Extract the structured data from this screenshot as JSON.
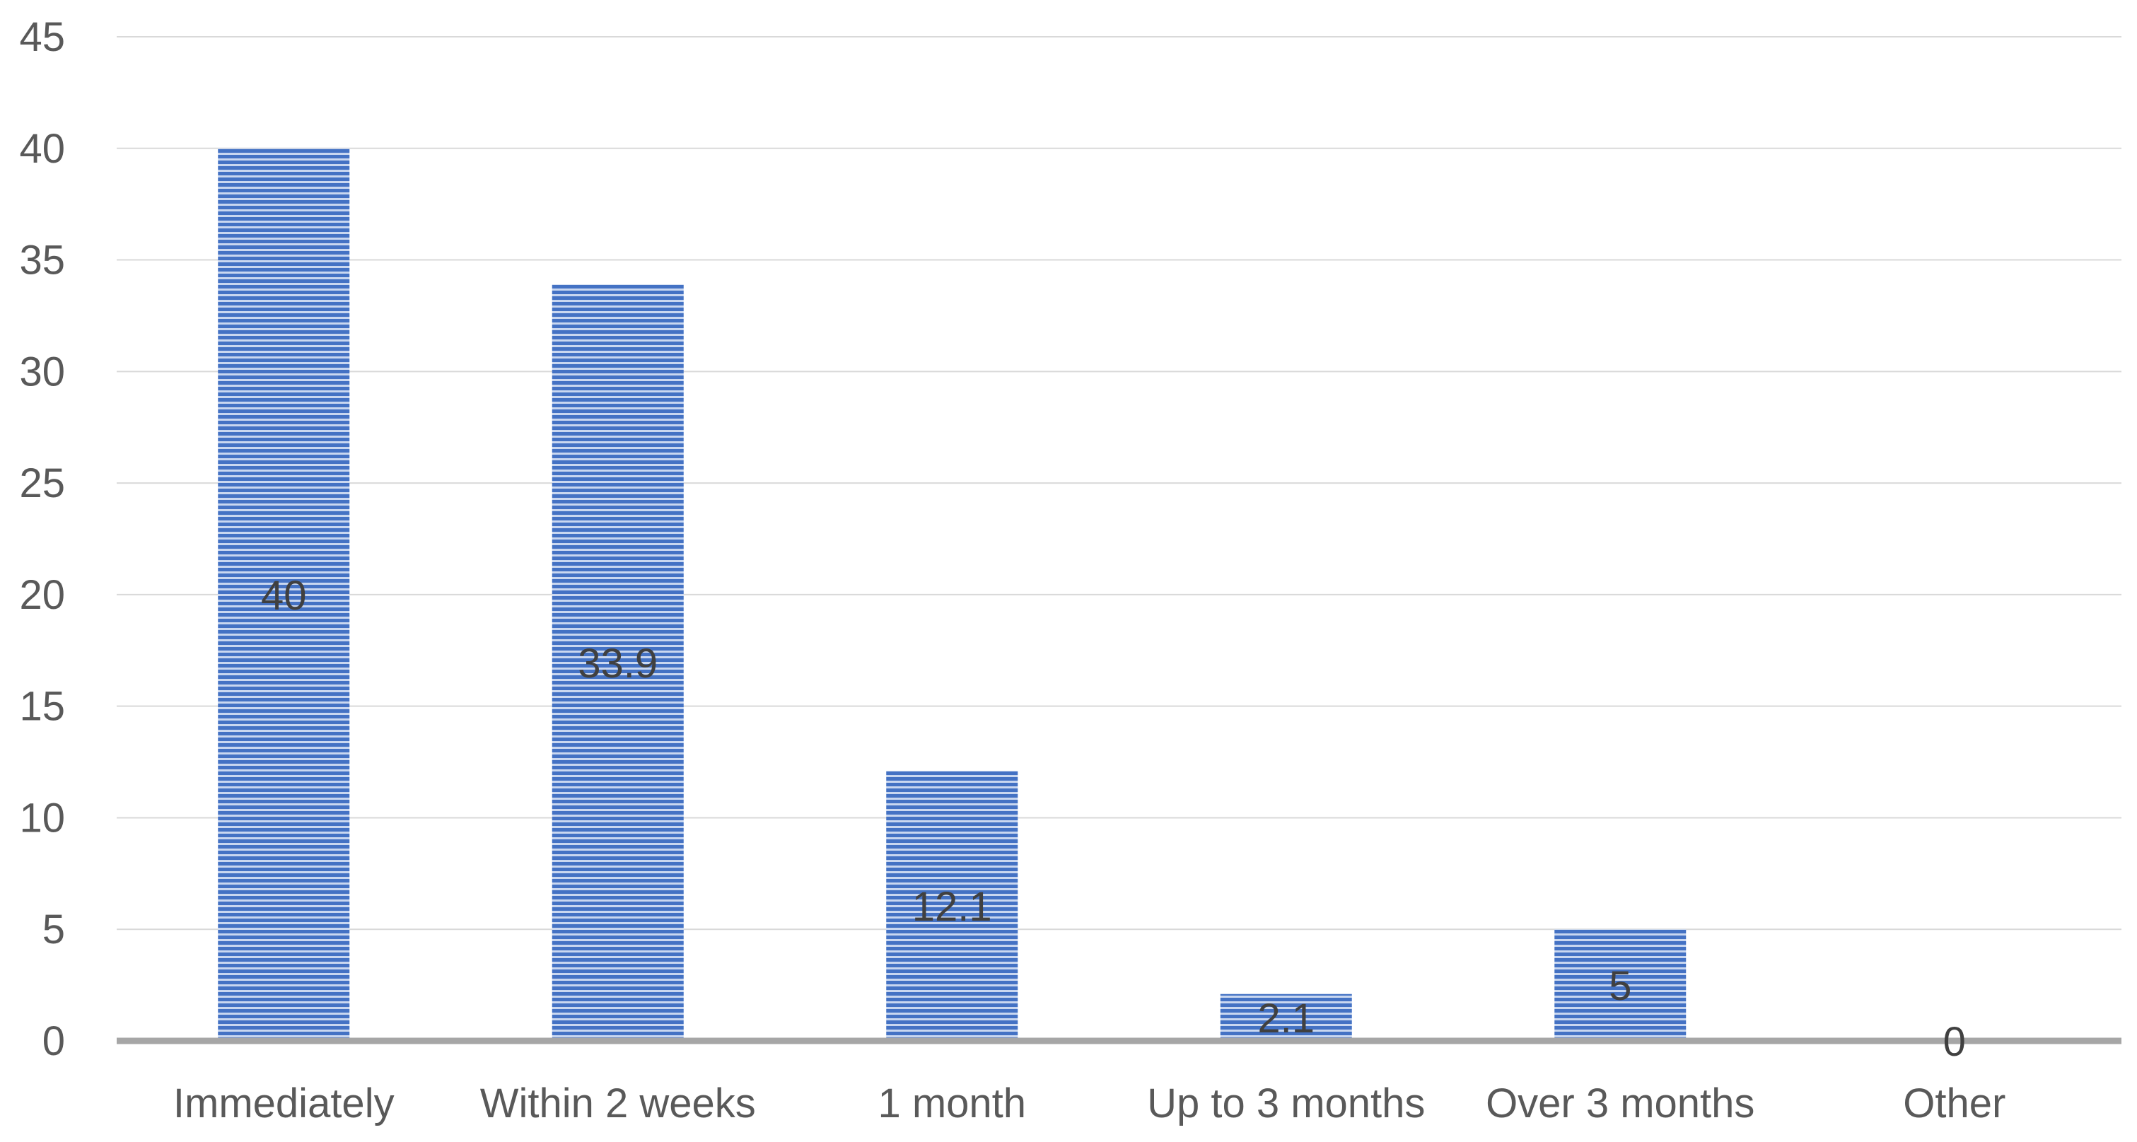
{
  "chart_data": {
    "type": "bar",
    "title": "",
    "xlabel": "",
    "ylabel": "",
    "categories": [
      "Immediately",
      "Within 2 weeks",
      "1 month",
      "Up to 3 months",
      "Over 3 months",
      "Other"
    ],
    "series": [
      {
        "values": [
          40,
          33.9,
          12.1,
          2.1,
          5,
          0
        ],
        "data_labels": [
          "40",
          "33.9",
          "12.1",
          "2.1",
          "5",
          "0"
        ],
        "color": "#4472C4",
        "fill_pattern": "horizontal-stripes"
      }
    ],
    "ylim": [
      0,
      45
    ],
    "yticks": [
      0,
      5,
      10,
      15,
      20,
      25,
      30,
      35,
      40,
      45
    ],
    "ytick_labels": [
      "0",
      "5",
      "10",
      "15",
      "20",
      "25",
      "30",
      "35",
      "40",
      "45"
    ],
    "grid": true,
    "legend": "none",
    "colors": {
      "bar": "#4472C4",
      "bar_stripe_light": "#C9D7F0",
      "gridline": "#D9D9D9",
      "baseline": "#A6A6A6",
      "tick_text": "#595959",
      "data_label_text": "#404040"
    }
  }
}
